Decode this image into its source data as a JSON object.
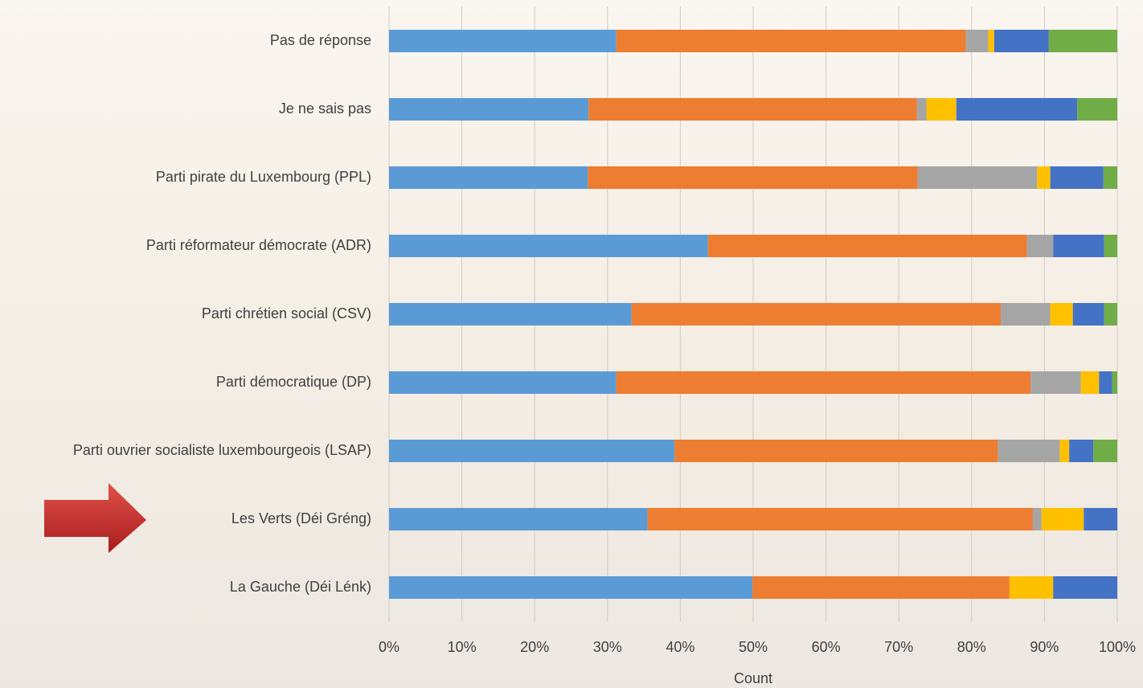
{
  "chart_data": {
    "type": "stacked_bar_100",
    "orientation": "horizontal",
    "xlabel": "Count",
    "categories": [
      "Pas de réponse",
      "Je ne sais pas",
      "Parti pirate du Luxembourg (PPL)",
      "Parti réformateur démocrate (ADR)",
      "Parti chrétien social (CSV)",
      "Parti démocratique (DP)",
      "Parti ouvrier socialiste luxembourgeois (LSAP)",
      "Les Verts (Déi Gréng)",
      "La Gauche (Déi Lénk)"
    ],
    "series": [
      {
        "color": "#5b9bd5",
        "values": [
          31.2,
          27.4,
          27.3,
          43.8,
          33.3,
          31.2,
          39.2,
          35.5,
          49.9
        ]
      },
      {
        "color": "#ed7d31",
        "values": [
          48.0,
          45.1,
          45.3,
          43.8,
          50.7,
          56.9,
          44.4,
          52.9,
          35.3
        ]
      },
      {
        "color": "#a5a5a5",
        "values": [
          3.1,
          1.3,
          16.4,
          3.6,
          6.8,
          6.9,
          8.5,
          1.2,
          0
        ]
      },
      {
        "color": "#ffc000",
        "values": [
          0.8,
          4.1,
          1.8,
          0,
          3.1,
          2.5,
          1.3,
          5.8,
          6.0
        ]
      },
      {
        "color": "#4472c4",
        "values": [
          7.5,
          16.6,
          7.3,
          7.0,
          4.3,
          1.8,
          3.3,
          4.6,
          8.8
        ]
      },
      {
        "color": "#70ad47",
        "values": [
          9.4,
          5.5,
          1.9,
          1.8,
          1.8,
          0.7,
          3.3,
          0,
          0
        ]
      }
    ],
    "xlim": [
      0,
      100
    ],
    "xticks": [
      {
        "value": 0,
        "label": "0%"
      },
      {
        "value": 10,
        "label": "10%"
      },
      {
        "value": 20,
        "label": "20%"
      },
      {
        "value": 30,
        "label": "30%"
      },
      {
        "value": 40,
        "label": "40%"
      },
      {
        "value": 50,
        "label": "50%"
      },
      {
        "value": 60,
        "label": "60%"
      },
      {
        "value": 70,
        "label": "70%"
      },
      {
        "value": 80,
        "label": "80%"
      },
      {
        "value": 90,
        "label": "90%"
      },
      {
        "value": 100,
        "label": "100%"
      }
    ],
    "grid": true
  }
}
